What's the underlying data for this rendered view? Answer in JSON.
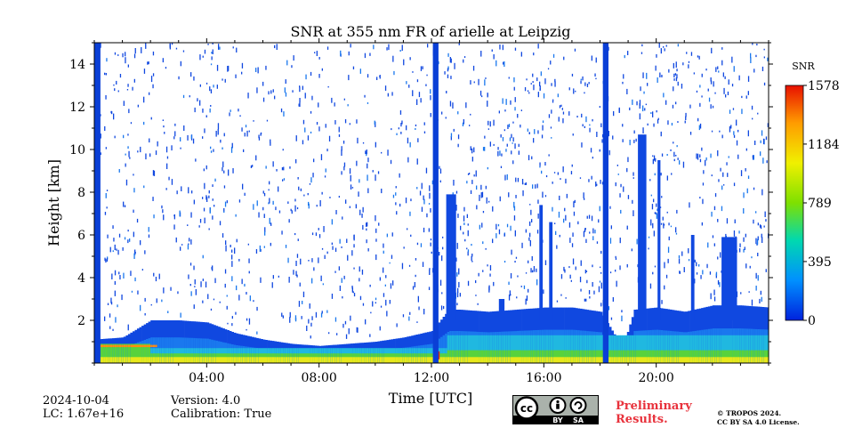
{
  "chart_data": {
    "type": "heatmap",
    "title": "SNR at 355 nm FR of arielle at Leipzig",
    "xlabel": "Time [UTC]",
    "ylabel": "Height [km]",
    "xlim": [
      0,
      24
    ],
    "ylim": [
      0,
      15
    ],
    "x_ticks": [
      4,
      8,
      12,
      16,
      20
    ],
    "x_tick_labels": [
      "04:00",
      "08:00",
      "12:00",
      "16:00",
      "20:00"
    ],
    "y_ticks": [
      2,
      4,
      6,
      8,
      10,
      12,
      14
    ],
    "y_tick_labels": [
      "2",
      "4",
      "6",
      "8",
      "10",
      "12",
      "14"
    ],
    "colorbar": {
      "label": "SNR",
      "min": 0,
      "max": 1578,
      "ticks": [
        0,
        395,
        789,
        1184,
        1578
      ],
      "tick_labels": [
        "0",
        "395",
        "789",
        "1184",
        "1578"
      ],
      "colors": [
        "#0022dd",
        "#0090ff",
        "#00d8b0",
        "#7ee000",
        "#f0f000",
        "#ff9c00",
        "#e81000"
      ]
    },
    "colors": {
      "full_column": "#0a3fd6",
      "blue_low": "#1048e0",
      "blue_mid": "#1a78ee",
      "cyan": "#20b8e0",
      "green": "#58d23c",
      "yellow": "#e8e81c",
      "orange": "#ff8c10",
      "red": "#e02010"
    },
    "full_columns": [
      {
        "start_hour": 0.0,
        "end_hour": 0.22
      },
      {
        "start_hour": 12.05,
        "end_hour": 12.25
      },
      {
        "start_hour": 18.1,
        "end_hour": 18.3
      }
    ],
    "boundary_layer_top_km": [
      [
        0.0,
        1.1
      ],
      [
        1.0,
        1.2
      ],
      [
        2.0,
        2.0
      ],
      [
        3.0,
        2.0
      ],
      [
        4.0,
        1.9
      ],
      [
        5.0,
        1.4
      ],
      [
        6.0,
        1.1
      ],
      [
        7.0,
        0.9
      ],
      [
        8.0,
        0.8
      ],
      [
        9.0,
        0.9
      ],
      [
        10.0,
        1.0
      ],
      [
        11.0,
        1.2
      ],
      [
        12.0,
        1.5
      ],
      [
        12.6,
        2.5
      ],
      [
        13.0,
        2.5
      ],
      [
        14.0,
        2.4
      ],
      [
        15.0,
        2.5
      ],
      [
        16.0,
        2.6
      ],
      [
        17.0,
        2.6
      ],
      [
        18.0,
        2.4
      ],
      [
        18.5,
        1.3
      ],
      [
        18.9,
        1.2
      ],
      [
        19.2,
        2.5
      ],
      [
        20.0,
        2.6
      ],
      [
        21.0,
        2.4
      ],
      [
        22.0,
        2.7
      ],
      [
        23.0,
        2.7
      ],
      [
        24.0,
        2.6
      ]
    ],
    "cloud_features": [
      {
        "hour": 12.7,
        "width_h": 0.35,
        "top_km": 7.9
      },
      {
        "hour": 15.9,
        "width_h": 0.12,
        "top_km": 7.4
      },
      {
        "hour": 16.25,
        "width_h": 0.12,
        "top_km": 6.6
      },
      {
        "hour": 19.5,
        "width_h": 0.3,
        "top_km": 10.7
      },
      {
        "hour": 20.1,
        "width_h": 0.1,
        "top_km": 9.5
      },
      {
        "hour": 22.6,
        "width_h": 0.55,
        "top_km": 5.9
      },
      {
        "hour": 21.3,
        "width_h": 0.12,
        "top_km": 6.0
      },
      {
        "hour": 14.5,
        "width_h": 0.2,
        "top_km": 3.0
      }
    ]
  },
  "footer": {
    "date": "2024-10-04",
    "lc": "LC: 1.67e+16",
    "version": "Version: 4.0",
    "calibration": "Calibration: True",
    "preliminary_line1": "Preliminary",
    "preliminary_line2": "Results.",
    "copyright_line1": "© TROPOS 2024.",
    "copyright_line2": "CC BY SA 4.0 License.",
    "license_badge": {
      "cc": "cc",
      "by": "BY",
      "sa": "SA"
    }
  }
}
